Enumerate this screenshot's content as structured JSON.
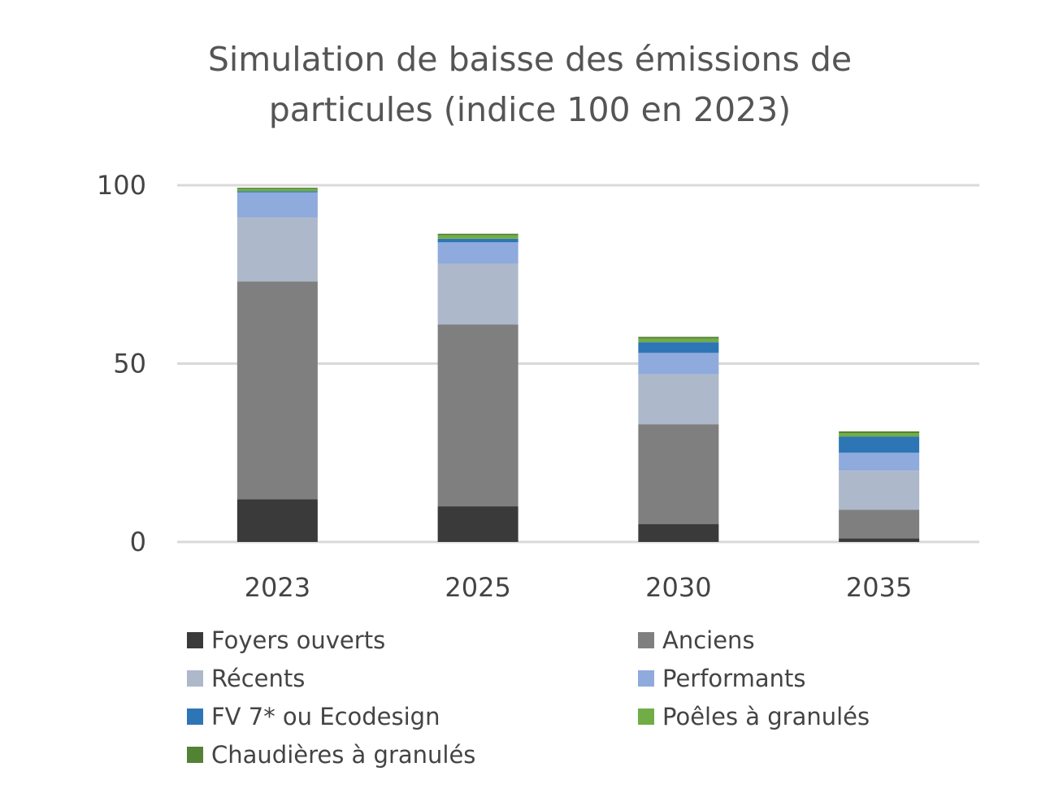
{
  "chart_data": {
    "type": "bar",
    "stacked": true,
    "title": "Simulation de baisse des émissions de particules (indice 100 en 2023)",
    "title_lines": [
      "Simulation de baisse des émissions de",
      "particules (indice 100 en 2023)"
    ],
    "xlabel": "",
    "ylabel": "",
    "categories": [
      "2023",
      "2025",
      "2030",
      "2035"
    ],
    "ylim": [
      0,
      100
    ],
    "yticks": [
      0,
      50,
      100
    ],
    "grid": true,
    "legend_position": "bottom",
    "series": [
      {
        "name": "Foyers ouverts",
        "color": "#3a3a3a",
        "values": [
          12,
          10,
          5,
          1
        ]
      },
      {
        "name": "Anciens",
        "color": "#7f7f7f",
        "values": [
          61,
          51,
          28,
          8
        ]
      },
      {
        "name": "Récents",
        "color": "#adb9ca",
        "values": [
          18,
          17,
          14,
          11
        ]
      },
      {
        "name": "Performants",
        "color": "#8faadc",
        "values": [
          7,
          6,
          6,
          5
        ]
      },
      {
        "name": "FV 7* ou Ecodesign",
        "color": "#2e75b6",
        "values": [
          0.3,
          1,
          3,
          4.5
        ]
      },
      {
        "name": "Poêles à granulés",
        "color": "#70ad47",
        "values": [
          0.7,
          1,
          1,
          1
        ]
      },
      {
        "name": "Chaudières à granulés",
        "color": "#548235",
        "values": [
          0.3,
          0.4,
          0.5,
          0.5
        ]
      }
    ]
  }
}
